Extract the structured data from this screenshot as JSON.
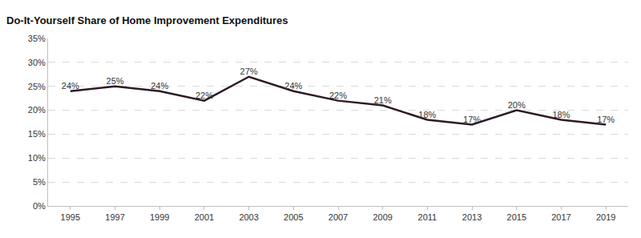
{
  "chart_data": {
    "type": "line",
    "title": "Do-It-Yourself Share of Home Improvement Expenditures",
    "categories": [
      "1995",
      "1997",
      "1999",
      "2001",
      "2003",
      "2005",
      "2007",
      "2009",
      "2011",
      "2013",
      "2015",
      "2017",
      "2019"
    ],
    "values": [
      24,
      25,
      24,
      22,
      27,
      24,
      22,
      21,
      18,
      17,
      20,
      18,
      17
    ],
    "value_labels": [
      "24%",
      "25%",
      "24%",
      "22%",
      "27%",
      "24%",
      "22%",
      "21%",
      "18%",
      "17%",
      "20%",
      "18%",
      "17%"
    ],
    "color": "#2e1a26",
    "ylim": [
      0,
      35
    ],
    "yticks": [
      {
        "value": 0,
        "label": "0%"
      },
      {
        "value": 5,
        "label": "5%"
      },
      {
        "value": 10,
        "label": "10%"
      },
      {
        "value": 15,
        "label": "15%"
      },
      {
        "value": 20,
        "label": "20%"
      },
      {
        "value": 25,
        "label": "25%"
      },
      {
        "value": 30,
        "label": "30%"
      },
      {
        "value": 35,
        "label": "35%"
      }
    ],
    "grid": true,
    "data_labels": true
  }
}
